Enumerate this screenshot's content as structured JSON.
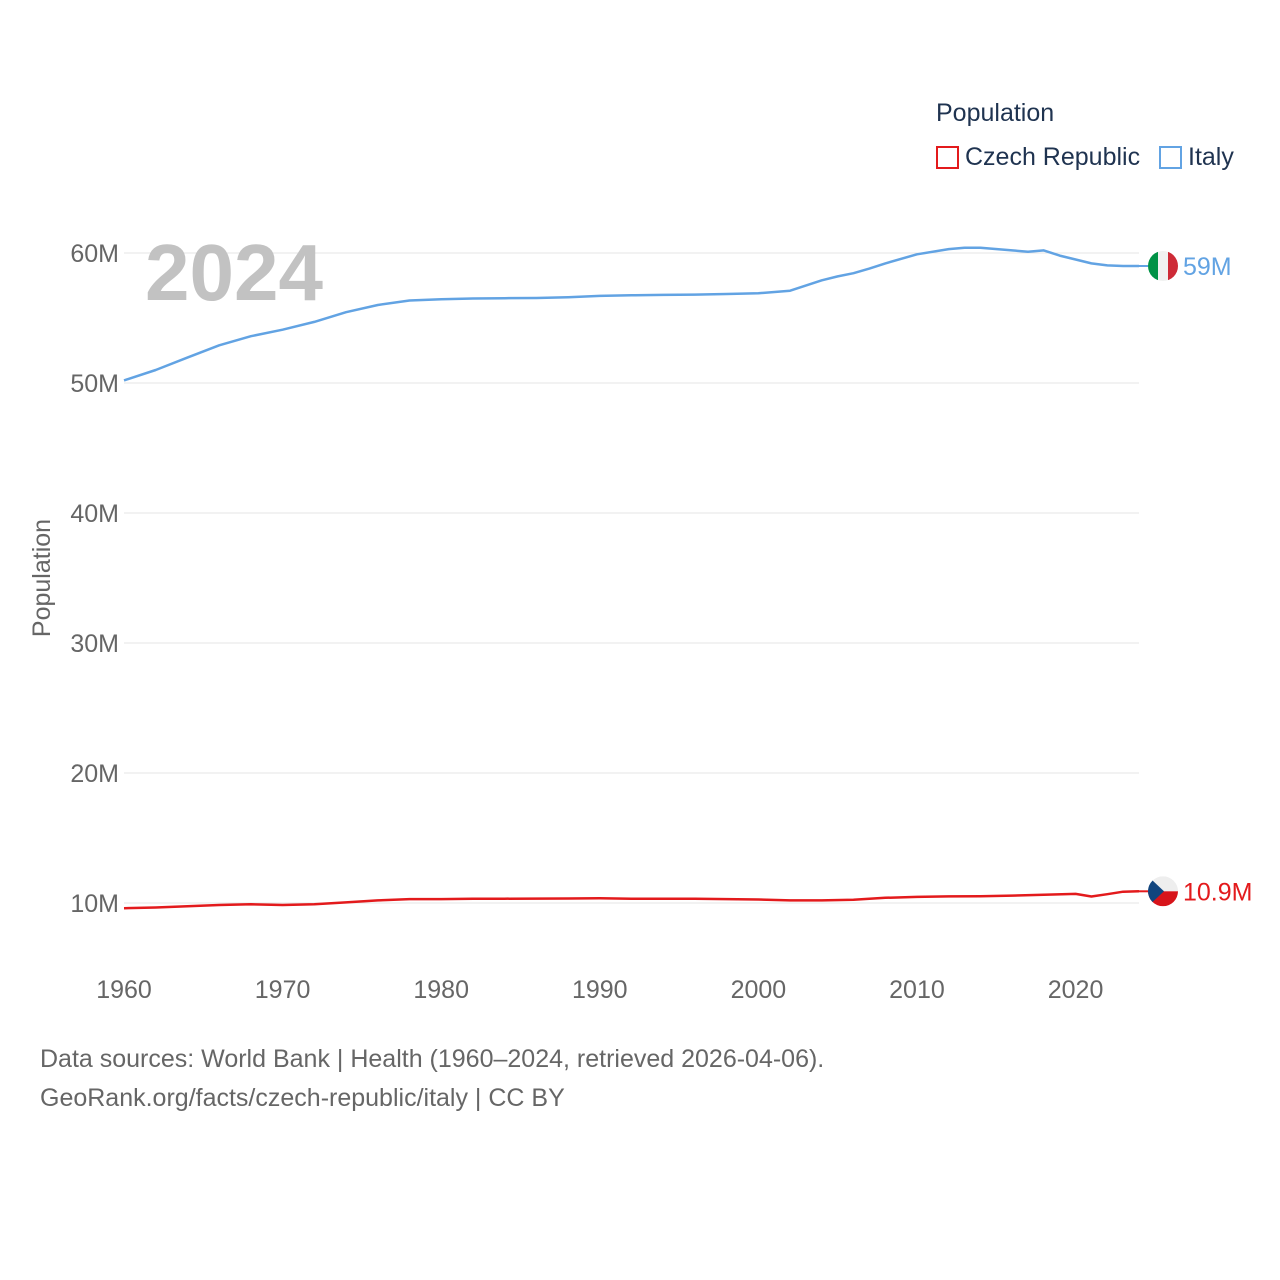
{
  "legend": {
    "title": "Population",
    "items": [
      {
        "name": "Czech Republic",
        "color": "#e31a1c"
      },
      {
        "name": "Italy",
        "color": "#62a3e3"
      }
    ]
  },
  "footer": {
    "line1": "Data sources: World Bank | Health (1960–2024, retrieved 2026-04-06).",
    "line2": "GeoRank.org/facts/czech-republic/italy | CC BY"
  },
  "chart_data": {
    "type": "line",
    "title": "Population",
    "current_year_label": "2024",
    "xlabel": "",
    "ylabel": "Population",
    "xlim": [
      1960,
      2024
    ],
    "ylim": [
      5000000,
      63000000
    ],
    "x_ticks": [
      1960,
      1970,
      1980,
      1990,
      2000,
      2010,
      2020
    ],
    "y_ticks": [
      {
        "value": 10000000,
        "label": "10M"
      },
      {
        "value": 20000000,
        "label": "20M"
      },
      {
        "value": 30000000,
        "label": "30M"
      },
      {
        "value": 40000000,
        "label": "40M"
      },
      {
        "value": 50000000,
        "label": "50M"
      },
      {
        "value": 60000000,
        "label": "60M"
      }
    ],
    "grid": true,
    "series": [
      {
        "name": "Czech Republic",
        "color": "#e31a1c",
        "end_label": "10.9M",
        "flag": "czech-flag",
        "x": [
          1960,
          1962,
          1964,
          1966,
          1968,
          1970,
          1972,
          1974,
          1976,
          1978,
          1980,
          1982,
          1984,
          1986,
          1988,
          1990,
          1992,
          1994,
          1996,
          1998,
          2000,
          2002,
          2004,
          2006,
          2008,
          2010,
          2012,
          2014,
          2016,
          2018,
          2020,
          2021,
          2022,
          2023,
          2024
        ],
        "values": [
          9600000,
          9650000,
          9750000,
          9850000,
          9900000,
          9850000,
          9900000,
          10050000,
          10200000,
          10300000,
          10300000,
          10320000,
          10330000,
          10340000,
          10350000,
          10360000,
          10320000,
          10330000,
          10320000,
          10300000,
          10270000,
          10200000,
          10200000,
          10250000,
          10400000,
          10470000,
          10510000,
          10520000,
          10570000,
          10640000,
          10700000,
          10500000,
          10680000,
          10870000,
          10900000
        ]
      },
      {
        "name": "Italy",
        "color": "#62a3e3",
        "end_label": "59M",
        "flag": "italy-flag",
        "x": [
          1960,
          1962,
          1964,
          1966,
          1968,
          1970,
          1972,
          1974,
          1976,
          1978,
          1980,
          1982,
          1984,
          1986,
          1988,
          1990,
          1992,
          1994,
          1996,
          1998,
          2000,
          2002,
          2004,
          2005,
          2006,
          2007,
          2008,
          2010,
          2012,
          2013,
          2014,
          2016,
          2017,
          2018,
          2019,
          2020,
          2021,
          2022,
          2023,
          2024
        ],
        "values": [
          50200000,
          51000000,
          51950000,
          52900000,
          53600000,
          54100000,
          54700000,
          55450000,
          56000000,
          56350000,
          56450000,
          56500000,
          56520000,
          56540000,
          56600000,
          56700000,
          56750000,
          56780000,
          56800000,
          56850000,
          56900000,
          57100000,
          57900000,
          58200000,
          58450000,
          58800000,
          59200000,
          59900000,
          60300000,
          60400000,
          60400000,
          60200000,
          60100000,
          60200000,
          59800000,
          59500000,
          59200000,
          59050000,
          59000000,
          59000000
        ]
      }
    ]
  }
}
